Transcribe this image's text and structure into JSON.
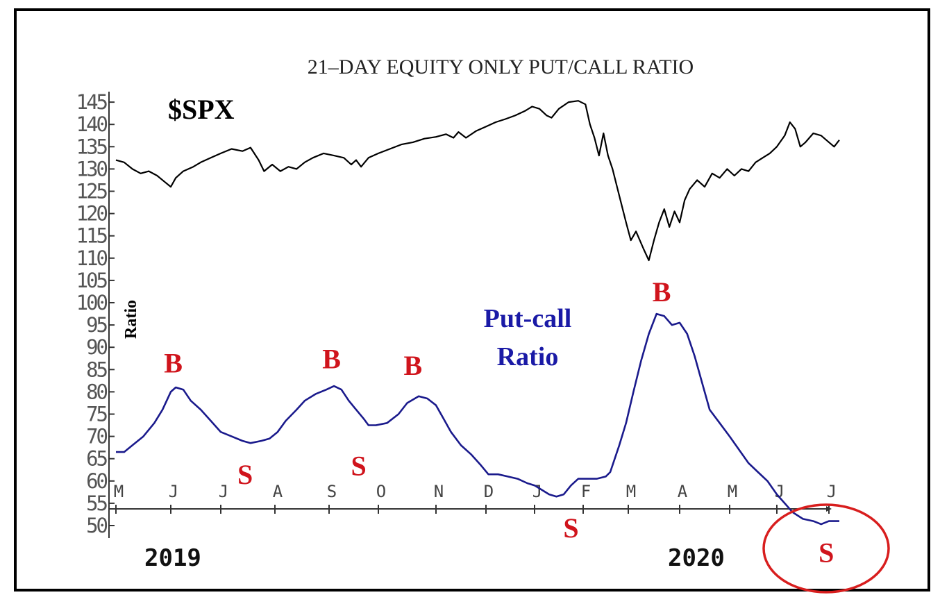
{
  "chart_data": {
    "type": "line",
    "title": "21-DAY EQUITY ONLY PUT/CALL RATIO",
    "ylabel": "Ratio",
    "ylim": [
      50,
      145
    ],
    "y_ticks": [
      145,
      140,
      135,
      130,
      125,
      120,
      115,
      110,
      105,
      100,
      95,
      90,
      85,
      80,
      75,
      70,
      65,
      60,
      55,
      50
    ],
    "y_tick_labels": [
      "145",
      "140",
      "135",
      "130",
      "125",
      "120",
      "115",
      "110",
      "105",
      "100",
      "95",
      "90",
      "85",
      "80",
      "75",
      "70",
      "65",
      "60",
      "55",
      "50"
    ],
    "x_tick_labels": [
      "M",
      "J",
      "J",
      "A",
      "S",
      "O",
      "N",
      "D",
      "J",
      "F",
      "M",
      "A",
      "M",
      "J",
      "J"
    ],
    "year_labels": [
      "2019",
      "2020"
    ],
    "grid": false,
    "series": [
      {
        "name": "$SPX",
        "color": "#000000",
        "note": "S&P 500 index in hundreds (e.g. 130 = 3000)",
        "points": [
          [
            0.0,
            132
          ],
          [
            0.15,
            131.5
          ],
          [
            0.3,
            130
          ],
          [
            0.45,
            129
          ],
          [
            0.6,
            129.5
          ],
          [
            0.75,
            128.5
          ],
          [
            0.9,
            127
          ],
          [
            1.0,
            126
          ],
          [
            1.1,
            128
          ],
          [
            1.25,
            129.5
          ],
          [
            1.45,
            130.5
          ],
          [
            1.6,
            131.5
          ],
          [
            1.8,
            132.5
          ],
          [
            2.0,
            133.5
          ],
          [
            2.2,
            134.5
          ],
          [
            2.4,
            134
          ],
          [
            2.55,
            134.8
          ],
          [
            2.7,
            132
          ],
          [
            2.8,
            129.5
          ],
          [
            2.95,
            131
          ],
          [
            3.1,
            129.5
          ],
          [
            3.25,
            130.5
          ],
          [
            3.4,
            130
          ],
          [
            3.55,
            131.5
          ],
          [
            3.7,
            132.5
          ],
          [
            3.9,
            133.5
          ],
          [
            4.1,
            133
          ],
          [
            4.3,
            132.5
          ],
          [
            4.45,
            131
          ],
          [
            4.55,
            132
          ],
          [
            4.65,
            130.5
          ],
          [
            4.8,
            132.5
          ],
          [
            5.0,
            133.5
          ],
          [
            5.2,
            134.5
          ],
          [
            5.4,
            135.5
          ],
          [
            5.6,
            136
          ],
          [
            5.8,
            136.8
          ],
          [
            6.0,
            137.2
          ],
          [
            6.2,
            137.8
          ],
          [
            6.35,
            137
          ],
          [
            6.45,
            138.3
          ],
          [
            6.6,
            137
          ],
          [
            6.8,
            138.5
          ],
          [
            7.0,
            139.5
          ],
          [
            7.2,
            140.5
          ],
          [
            7.4,
            141.2
          ],
          [
            7.6,
            142
          ],
          [
            7.8,
            143
          ],
          [
            7.95,
            144
          ],
          [
            8.1,
            143.5
          ],
          [
            8.25,
            142
          ],
          [
            8.35,
            141.5
          ],
          [
            8.5,
            143.5
          ],
          [
            8.7,
            145
          ],
          [
            8.9,
            145.3
          ],
          [
            9.05,
            144.5
          ],
          [
            9.15,
            140
          ],
          [
            9.25,
            137
          ],
          [
            9.35,
            133
          ],
          [
            9.45,
            138
          ],
          [
            9.55,
            133
          ],
          [
            9.65,
            130
          ],
          [
            9.75,
            126
          ],
          [
            9.85,
            122
          ],
          [
            9.95,
            118
          ],
          [
            10.05,
            114
          ],
          [
            10.15,
            116
          ],
          [
            10.3,
            112
          ],
          [
            10.4,
            109.5
          ],
          [
            10.5,
            114
          ],
          [
            10.6,
            118
          ],
          [
            10.7,
            121
          ],
          [
            10.8,
            117
          ],
          [
            10.9,
            120.5
          ],
          [
            11.0,
            118
          ],
          [
            11.1,
            123
          ],
          [
            11.2,
            125.5
          ],
          [
            11.35,
            127.5
          ],
          [
            11.5,
            126
          ],
          [
            11.65,
            129
          ],
          [
            11.8,
            128
          ],
          [
            11.95,
            130
          ],
          [
            12.1,
            128.5
          ],
          [
            12.25,
            130
          ],
          [
            12.4,
            129.5
          ],
          [
            12.55,
            131.5
          ],
          [
            12.7,
            132.5
          ],
          [
            12.85,
            133.5
          ],
          [
            13.0,
            135
          ],
          [
            13.15,
            137.5
          ],
          [
            13.25,
            140.5
          ],
          [
            13.35,
            139
          ],
          [
            13.45,
            135
          ],
          [
            13.55,
            136
          ],
          [
            13.7,
            138
          ],
          [
            13.85,
            137.5
          ],
          [
            14.0,
            136
          ],
          [
            14.1,
            135
          ],
          [
            14.2,
            136.5
          ]
        ]
      },
      {
        "name": "Put-call Ratio",
        "color": "#1a1a8c",
        "points": [
          [
            0.0,
            66.5
          ],
          [
            0.15,
            66.5
          ],
          [
            0.3,
            68
          ],
          [
            0.5,
            70
          ],
          [
            0.7,
            73
          ],
          [
            0.85,
            76
          ],
          [
            1.0,
            80
          ],
          [
            1.1,
            81
          ],
          [
            1.25,
            80.5
          ],
          [
            1.4,
            78
          ],
          [
            1.6,
            76
          ],
          [
            1.8,
            73.5
          ],
          [
            2.0,
            71
          ],
          [
            2.2,
            70
          ],
          [
            2.4,
            69
          ],
          [
            2.55,
            68.5
          ],
          [
            2.75,
            69
          ],
          [
            2.9,
            69.5
          ],
          [
            3.05,
            71
          ],
          [
            3.2,
            73.5
          ],
          [
            3.4,
            76
          ],
          [
            3.55,
            78
          ],
          [
            3.75,
            79.5
          ],
          [
            3.95,
            80.5
          ],
          [
            4.1,
            81.3
          ],
          [
            4.25,
            80.5
          ],
          [
            4.4,
            78
          ],
          [
            4.55,
            76
          ],
          [
            4.7,
            74
          ],
          [
            4.8,
            72.5
          ],
          [
            4.95,
            72.5
          ],
          [
            5.15,
            73
          ],
          [
            5.35,
            75
          ],
          [
            5.5,
            77.5
          ],
          [
            5.7,
            79
          ],
          [
            5.85,
            78.5
          ],
          [
            6.0,
            77
          ],
          [
            6.15,
            74
          ],
          [
            6.3,
            71
          ],
          [
            6.5,
            68
          ],
          [
            6.7,
            66
          ],
          [
            6.9,
            63.5
          ],
          [
            7.05,
            61.5
          ],
          [
            7.25,
            61.5
          ],
          [
            7.45,
            61
          ],
          [
            7.65,
            60.5
          ],
          [
            7.85,
            59.5
          ],
          [
            8.0,
            59
          ],
          [
            8.15,
            58
          ],
          [
            8.3,
            57
          ],
          [
            8.45,
            56.5
          ],
          [
            8.6,
            57
          ],
          [
            8.75,
            59
          ],
          [
            8.9,
            60.5
          ],
          [
            9.1,
            60.5
          ],
          [
            9.3,
            60.5
          ],
          [
            9.5,
            61
          ],
          [
            9.6,
            62
          ],
          [
            9.7,
            65
          ],
          [
            9.8,
            68
          ],
          [
            9.95,
            73
          ],
          [
            10.1,
            80
          ],
          [
            10.25,
            87
          ],
          [
            10.4,
            93
          ],
          [
            10.55,
            97.5
          ],
          [
            10.7,
            97
          ],
          [
            10.85,
            95
          ],
          [
            11.0,
            95.5
          ],
          [
            11.15,
            93
          ],
          [
            11.3,
            88
          ],
          [
            11.45,
            82
          ],
          [
            11.6,
            76
          ],
          [
            11.8,
            73
          ],
          [
            12.0,
            70
          ],
          [
            12.2,
            67
          ],
          [
            12.4,
            64
          ],
          [
            12.6,
            62
          ],
          [
            12.8,
            60
          ],
          [
            13.0,
            57
          ],
          [
            13.15,
            55
          ],
          [
            13.3,
            53
          ],
          [
            13.5,
            51.5
          ],
          [
            13.7,
            51
          ],
          [
            13.85,
            50.3
          ],
          [
            14.0,
            51
          ],
          [
            14.2,
            51
          ]
        ]
      }
    ],
    "annotations": [
      {
        "text": "B",
        "at": [
          1.05,
          86.5
        ],
        "color": "#d0141c"
      },
      {
        "text": "B",
        "at": [
          4.05,
          87.5
        ],
        "color": "#d0141c"
      },
      {
        "text": "B",
        "at": [
          5.6,
          86
        ],
        "color": "#d0141c"
      },
      {
        "text": "B",
        "at": [
          10.65,
          102.5
        ],
        "color": "#d0141c"
      },
      {
        "text": "S",
        "at": [
          2.45,
          61.5
        ],
        "color": "#d0141c"
      },
      {
        "text": "S",
        "at": [
          4.6,
          63.5
        ],
        "color": "#d0141c"
      },
      {
        "text": "S",
        "at": [
          8.75,
          49.5
        ],
        "color": "#d0141c"
      },
      {
        "text": "S",
        "at": [
          13.95,
          44
        ],
        "color": "#d0141c",
        "circled": true
      }
    ]
  },
  "labels": {
    "title": "21–DAY EQUITY ONLY PUT/CALL RATIO",
    "spx": "$SPX",
    "ratio_axis": "Ratio",
    "pc_line1": "Put-call",
    "pc_line2": "Ratio",
    "year_2019": "2019",
    "year_2020": "2020"
  },
  "colors": {
    "spx_line": "#000000",
    "pc_line": "#1a1a8c",
    "signal": "#d0141c",
    "highlight_circle": "#d81e1e"
  }
}
